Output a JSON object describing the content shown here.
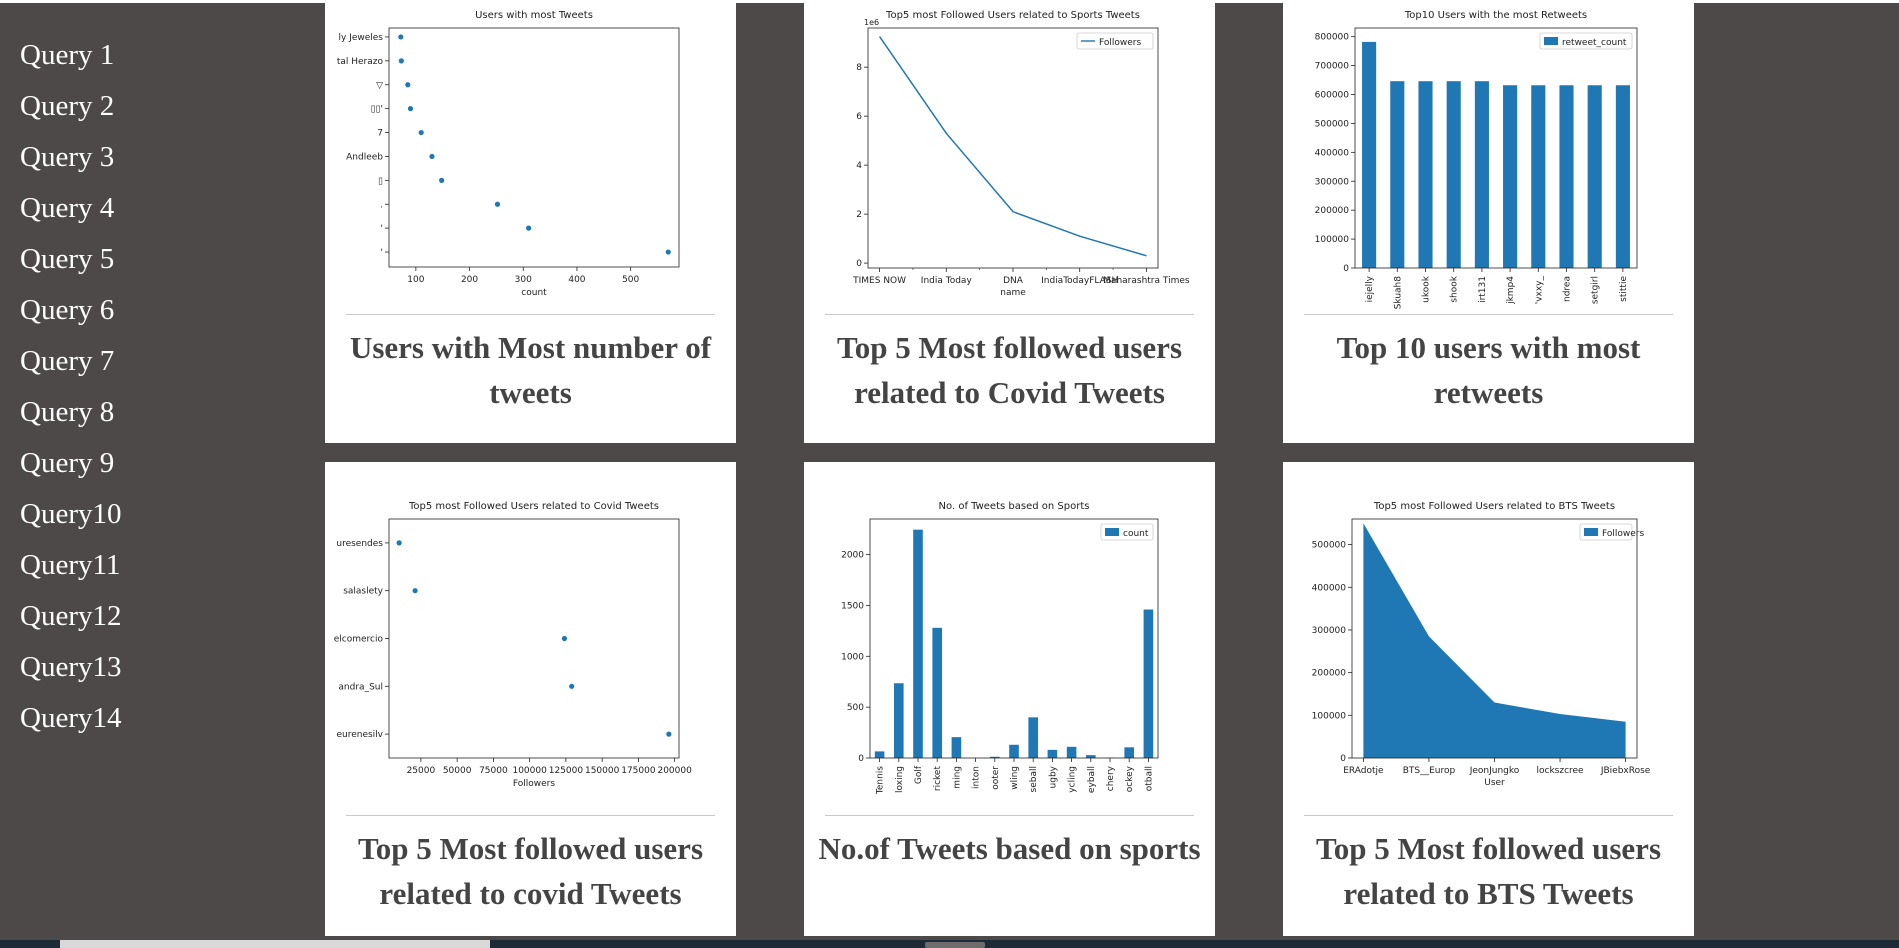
{
  "sidebar": {
    "items": [
      {
        "label": "Query 1"
      },
      {
        "label": "Query 2"
      },
      {
        "label": "Query 3"
      },
      {
        "label": "Query 4"
      },
      {
        "label": "Query 5"
      },
      {
        "label": "Query 6"
      },
      {
        "label": "Query 7"
      },
      {
        "label": "Query 8"
      },
      {
        "label": "Query 9"
      },
      {
        "label": "Query10"
      },
      {
        "label": "Query11"
      },
      {
        "label": "Query12"
      },
      {
        "label": "Query13"
      },
      {
        "label": "Query14"
      }
    ]
  },
  "cards": [
    {
      "caption": "Users with Most number of tweets"
    },
    {
      "caption": "Top 5 Most followed users related to Covid Tweets"
    },
    {
      "caption": "Top 10 users with most retweets"
    },
    {
      "caption": "Top 5 Most followed users related to covid Tweets"
    },
    {
      "caption": "No.of Tweets based on sports"
    },
    {
      "caption": "Top 5 Most followed users related to BTS Tweets"
    }
  ],
  "colors": {
    "background": "#4e4949",
    "series": "#1f77b4",
    "card": "#ffffff"
  },
  "chart_data": [
    {
      "type": "scatter",
      "title": "Users with most Tweets",
      "xlabel": "count",
      "ylabel": "",
      "xlim": [
        50,
        590
      ],
      "xticks": [
        100,
        200,
        300,
        400,
        500
      ],
      "y_labels": [
        "ly Jeweles",
        "tal Herazo",
        "▽",
        "▯▯'",
        "7",
        "Andleeb",
        "▯",
        ".",
        "'",
        "'"
      ],
      "x": [
        72,
        73,
        85,
        90,
        110,
        130,
        148,
        252,
        310,
        570
      ]
    },
    {
      "type": "line",
      "title": "Top5 most Followed Users related to Sports Tweets",
      "offset_label": "1e6",
      "xlabel": "name",
      "ylabel": "",
      "ylim": [
        -0.2,
        9.6
      ],
      "yticks": [
        0,
        2,
        4,
        6,
        8
      ],
      "categories": [
        "TIMES NOW",
        "India Today",
        "DNA",
        "IndiaTodayFLASH",
        "Maharashtra Times"
      ],
      "legend": "Followers",
      "values": [
        9.25,
        5.3,
        2.1,
        1.1,
        0.3
      ]
    },
    {
      "type": "bar",
      "title": "Top10 Users with the most Retweets",
      "xlabel": "",
      "ylabel": "",
      "ylim": [
        0,
        830000
      ],
      "yticks": [
        0,
        100000,
        200000,
        300000,
        400000,
        500000,
        600000,
        700000,
        800000
      ],
      "categories": [
        "iejelly",
        "Skuah8",
        "ukook",
        "shook",
        "irt131",
        "jkmp4",
        "'vxxy_",
        "ndrea",
        "setgirl",
        "stittie"
      ],
      "legend": "retweet_count",
      "values": [
        782000,
        646000,
        646000,
        646000,
        646000,
        632000,
        632000,
        632000,
        632000,
        632000
      ]
    },
    {
      "type": "scatter",
      "title": "Top5 most Followed Users related to Covid Tweets",
      "xlabel": "Followers",
      "ylabel": "",
      "xlim": [
        3000,
        203000
      ],
      "xticks": [
        25000,
        50000,
        75000,
        100000,
        125000,
        150000,
        175000,
        200000
      ],
      "y_labels": [
        "uresendes",
        "salaslety",
        "elcomercio",
        "andra_Sul",
        "eurenesilv"
      ],
      "x": [
        10000,
        21000,
        124000,
        129000,
        196000
      ]
    },
    {
      "type": "bar",
      "title": "No. of Tweets based on Sports",
      "xlabel": "",
      "ylabel": "",
      "ylim": [
        0,
        2350
      ],
      "yticks": [
        0,
        500,
        1000,
        1500,
        2000
      ],
      "categories": [
        "Tennis",
        "loxing",
        "Golf",
        "ricket",
        "ming",
        "inton",
        "ooter",
        "wling",
        "seball",
        "ugby",
        "ycling",
        "eyball",
        "chery",
        "ockey",
        "otball"
      ],
      "legend": "count",
      "values": [
        65,
        735,
        2245,
        1280,
        205,
        0,
        12,
        130,
        400,
        80,
        110,
        28,
        3,
        105,
        1460
      ]
    },
    {
      "type": "area",
      "title": "Top5 most Followed Users related to BTS Tweets",
      "xlabel": "User",
      "ylabel": "",
      "ylim": [
        0,
        560000
      ],
      "yticks": [
        0,
        100000,
        200000,
        300000,
        400000,
        500000
      ],
      "categories": [
        "ERAdotje",
        "BTS__Europ",
        "JeonJungko",
        "lockszcree",
        "JBiebxRose"
      ],
      "legend": "Followers",
      "values": [
        550000,
        285000,
        130000,
        103000,
        85000
      ]
    }
  ]
}
